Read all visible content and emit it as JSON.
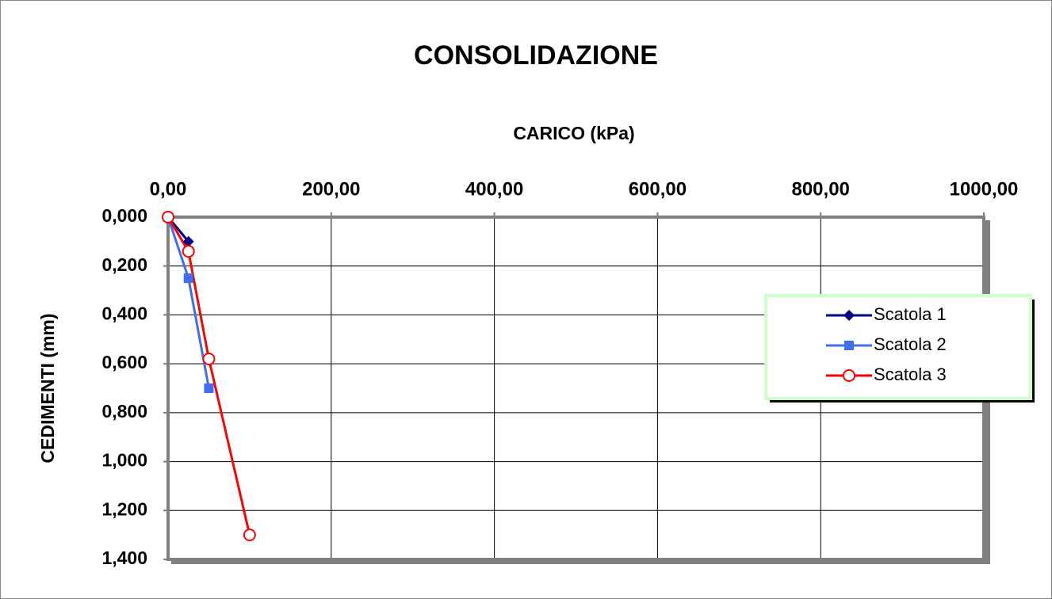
{
  "chart_data": {
    "type": "line",
    "title": "CONSOLIDAZIONE",
    "x_label": "CARICO (kPa)",
    "y_label": "CEDIMENTI (mm)",
    "xlim": [
      0,
      1000
    ],
    "xticks": [
      {
        "value": 0,
        "label": "0,00"
      },
      {
        "value": 200,
        "label": "200,00"
      },
      {
        "value": 400,
        "label": "400,00"
      },
      {
        "value": 600,
        "label": "600,00"
      },
      {
        "value": 800,
        "label": "800,00"
      },
      {
        "value": 1000,
        "label": "1000,00"
      }
    ],
    "ylim": [
      0,
      1.4
    ],
    "y_inverted": true,
    "yticks": [
      {
        "value": 0,
        "label": "0,000"
      },
      {
        "value": 0.2,
        "label": "0,200"
      },
      {
        "value": 0.4,
        "label": "0,400"
      },
      {
        "value": 0.6,
        "label": "0,600"
      },
      {
        "value": 0.8,
        "label": "0,800"
      },
      {
        "value": 1.0,
        "label": "1,000"
      },
      {
        "value": 1.2,
        "label": "1,200"
      },
      {
        "value": 1.4,
        "label": "1,400"
      }
    ],
    "grid": true,
    "legend": "right",
    "series": [
      {
        "name": "Scatola 1",
        "color": "#000080",
        "marker": "diamond",
        "x": [
          0,
          25
        ],
        "values": [
          0,
          0.1
        ]
      },
      {
        "name": "Scatola 2",
        "color": "#3f6ff0",
        "marker": "square",
        "x": [
          0,
          25,
          50
        ],
        "values": [
          0,
          0.25,
          0.7
        ]
      },
      {
        "name": "Scatola 3",
        "color": "#ff0000",
        "marker": "circle",
        "x": [
          0,
          25,
          50,
          100
        ],
        "values": [
          0,
          0.14,
          0.58,
          1.3
        ]
      }
    ]
  }
}
